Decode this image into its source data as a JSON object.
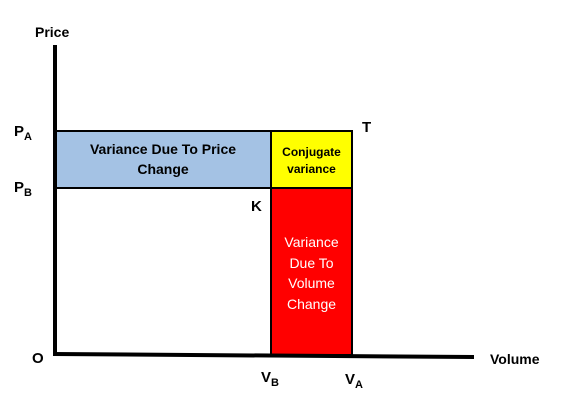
{
  "axes": {
    "y_title": "Price",
    "x_title": "Volume",
    "origin": "O"
  },
  "points": {
    "pa": {
      "main": "P",
      "sub": "A"
    },
    "pb": {
      "main": "P",
      "sub": "B"
    },
    "va": {
      "main": "V",
      "sub": "A"
    },
    "vb": {
      "main": "V",
      "sub": "B"
    },
    "t": "T",
    "k": "K"
  },
  "regions": {
    "price_variance": {
      "lines": [
        "Variance Due To Price",
        "Change"
      ],
      "color": "#a4c2e4"
    },
    "conjugate_variance": {
      "lines": [
        "Conjugate",
        "variance"
      ],
      "color": "#ffff00"
    },
    "volume_variance": {
      "lines": [
        "Variance",
        "Due To",
        "Volume",
        "Change"
      ],
      "color": "#ff0000"
    }
  }
}
